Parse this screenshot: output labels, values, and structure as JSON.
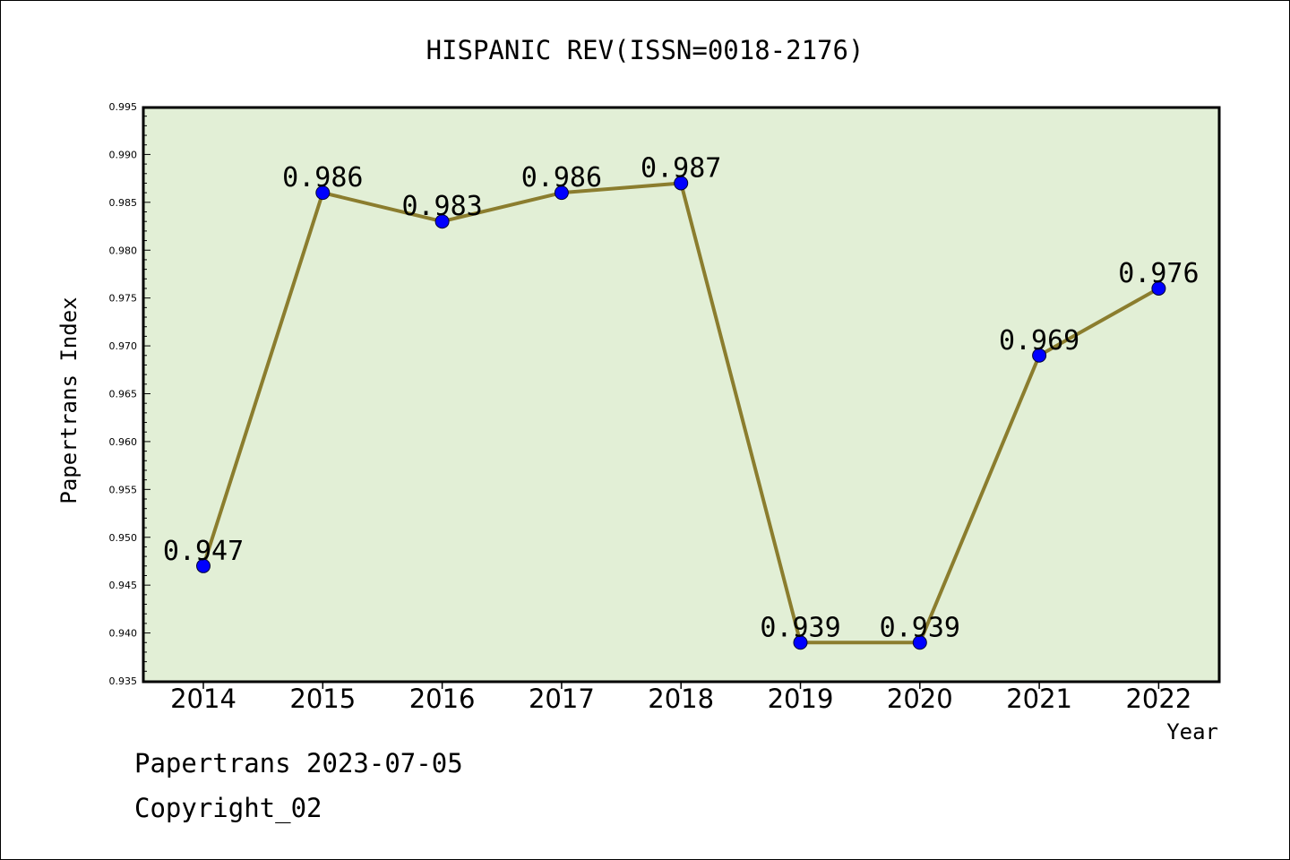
{
  "chart_data": {
    "type": "line",
    "title": "HISPANIC REV(ISSN=0018-2176)",
    "xlabel": "Year",
    "ylabel": "Papertrans Index",
    "categories": [
      "2014",
      "2015",
      "2016",
      "2017",
      "2018",
      "2019",
      "2020",
      "2021",
      "2022"
    ],
    "series": [
      {
        "values": [
          0.947,
          0.986,
          0.983,
          0.986,
          0.987,
          0.939,
          0.939,
          0.969,
          0.976
        ]
      }
    ],
    "data_labels": [
      "0.947",
      "0.986",
      "0.983",
      "0.986",
      "0.987",
      "0.939",
      "0.939",
      "0.969",
      "0.976"
    ],
    "ylim": [
      0.935,
      0.995
    ],
    "yticks": [
      "0.935",
      "0.940",
      "0.945",
      "0.950",
      "0.955",
      "0.960",
      "0.965",
      "0.970",
      "0.975",
      "0.980",
      "0.985",
      "0.990",
      "0.995"
    ],
    "grid": false,
    "legend": "none",
    "colors": {
      "plot_background": "#e2efd6",
      "line": "#8b7d2e",
      "marker": "#0000ff"
    }
  },
  "footer": {
    "line1": "Papertrans 2023-07-05",
    "line2": "Copyright_02"
  }
}
